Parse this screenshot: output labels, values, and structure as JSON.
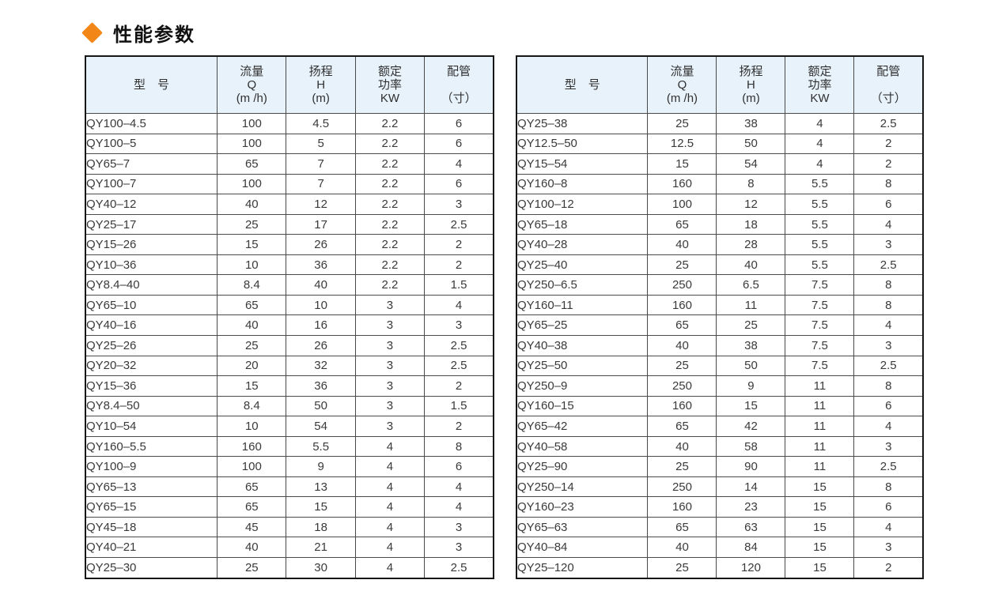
{
  "page": {
    "title": "性能参数"
  },
  "style": {
    "accent_color": "#f28718",
    "header_bg": "#e8f2fa",
    "inner_border_color": "#4a4a4a",
    "outer_border_color": "#161616",
    "text_color": "#3a3a3a"
  },
  "columns": [
    {
      "lines": [
        "型　号"
      ]
    },
    {
      "lines": [
        "流量",
        "Q",
        "(m /h)"
      ]
    },
    {
      "lines": [
        "扬程",
        "H",
        "(m)"
      ]
    },
    {
      "lines": [
        "额定",
        "功率",
        "KW"
      ]
    },
    {
      "lines": [
        "配管",
        "",
        "（寸）"
      ]
    }
  ],
  "tables": {
    "left": {
      "rows": [
        [
          "QY100–4.5",
          "100",
          "4.5",
          "2.2",
          "6"
        ],
        [
          "QY100–5",
          "100",
          "5",
          "2.2",
          "6"
        ],
        [
          "QY65–7",
          "65",
          "7",
          "2.2",
          "4"
        ],
        [
          "QY100–7",
          "100",
          "7",
          "2.2",
          "6"
        ],
        [
          "QY40–12",
          "40",
          "12",
          "2.2",
          "3"
        ],
        [
          "QY25–17",
          "25",
          "17",
          "2.2",
          "2.5"
        ],
        [
          "QY15–26",
          "15",
          "26",
          "2.2",
          "2"
        ],
        [
          "QY10–36",
          "10",
          "36",
          "2.2",
          "2"
        ],
        [
          "QY8.4–40",
          "8.4",
          "40",
          "2.2",
          "1.5"
        ],
        [
          "QY65–10",
          "65",
          "10",
          "3",
          "4"
        ],
        [
          "QY40–16",
          "40",
          "16",
          "3",
          "3"
        ],
        [
          "QY25–26",
          "25",
          "26",
          "3",
          "2.5"
        ],
        [
          "QY20–32",
          "20",
          "32",
          "3",
          "2.5"
        ],
        [
          "QY15–36",
          "15",
          "36",
          "3",
          "2"
        ],
        [
          "QY8.4–50",
          "8.4",
          "50",
          "3",
          "1.5"
        ],
        [
          "QY10–54",
          "10",
          "54",
          "3",
          "2"
        ],
        [
          "QY160–5.5",
          "160",
          "5.5",
          "4",
          "8"
        ],
        [
          "QY100–9",
          "100",
          "9",
          "4",
          "6"
        ],
        [
          "QY65–13",
          "65",
          "13",
          "4",
          "4"
        ],
        [
          "QY65–15",
          "65",
          "15",
          "4",
          "4"
        ],
        [
          "QY45–18",
          "45",
          "18",
          "4",
          "3"
        ],
        [
          "QY40–21",
          "40",
          "21",
          "4",
          "3"
        ],
        [
          "QY25–30",
          "25",
          "30",
          "4",
          "2.5"
        ]
      ]
    },
    "right": {
      "rows": [
        [
          "QY25–38",
          "25",
          "38",
          "4",
          "2.5"
        ],
        [
          "QY12.5–50",
          "12.5",
          "50",
          "4",
          "2"
        ],
        [
          "QY15–54",
          "15",
          "54",
          "4",
          "2"
        ],
        [
          "QY160–8",
          "160",
          "8",
          "5.5",
          "8"
        ],
        [
          "QY100–12",
          "100",
          "12",
          "5.5",
          "6"
        ],
        [
          "QY65–18",
          "65",
          "18",
          "5.5",
          "4"
        ],
        [
          "QY40–28",
          "40",
          "28",
          "5.5",
          "3"
        ],
        [
          "QY25–40",
          "25",
          "40",
          "5.5",
          "2.5"
        ],
        [
          "QY250–6.5",
          "250",
          "6.5",
          "7.5",
          "8"
        ],
        [
          "QY160–11",
          "160",
          "11",
          "7.5",
          "8"
        ],
        [
          "QY65–25",
          "65",
          "25",
          "7.5",
          "4"
        ],
        [
          "QY40–38",
          "40",
          "38",
          "7.5",
          "3"
        ],
        [
          "QY25–50",
          "25",
          "50",
          "7.5",
          "2.5"
        ],
        [
          "QY250–9",
          "250",
          "9",
          "11",
          "8"
        ],
        [
          "QY160–15",
          "160",
          "15",
          "11",
          "6"
        ],
        [
          "QY65–42",
          "65",
          "42",
          "11",
          "4"
        ],
        [
          "QY40–58",
          "40",
          "58",
          "11",
          "3"
        ],
        [
          "QY25–90",
          "25",
          "90",
          "11",
          "2.5"
        ],
        [
          "QY250–14",
          "250",
          "14",
          "15",
          "8"
        ],
        [
          "QY160–23",
          "160",
          "23",
          "15",
          "6"
        ],
        [
          "QY65–63",
          "65",
          "63",
          "15",
          "4"
        ],
        [
          "QY40–84",
          "40",
          "84",
          "15",
          "3"
        ],
        [
          "QY25–120",
          "25",
          "120",
          "15",
          "2"
        ]
      ]
    }
  }
}
